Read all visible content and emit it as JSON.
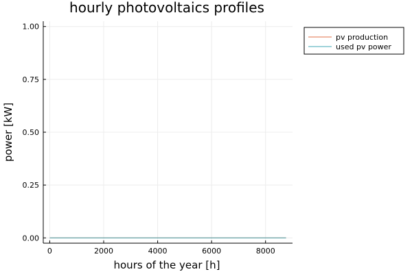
{
  "chart_data": {
    "type": "line",
    "title": "hourly photovoltaics profiles",
    "xlabel": "hours of the year [h]",
    "ylabel": "power [kW]",
    "xlim": [
      -240,
      9000
    ],
    "ylim": [
      -0.025,
      1.025
    ],
    "xticks": [
      0,
      2000,
      4000,
      6000,
      8000
    ],
    "yticks": [
      0.0,
      0.25,
      0.5,
      0.75,
      1.0
    ],
    "xtick_labels": [
      "0",
      "2000",
      "4000",
      "6000",
      "8000"
    ],
    "ytick_labels": [
      "0.00",
      "0.25",
      "0.50",
      "0.75",
      "1.00"
    ],
    "grid": true,
    "legend_position": "outer-top-right",
    "series": [
      {
        "name": "pv production",
        "color": "#e26f46",
        "x": [
          1,
          8760
        ],
        "y": [
          0,
          0
        ]
      },
      {
        "name": "used pv power",
        "color": "#3da6b5",
        "x": [
          1,
          8760
        ],
        "y": [
          0,
          0
        ]
      }
    ]
  }
}
